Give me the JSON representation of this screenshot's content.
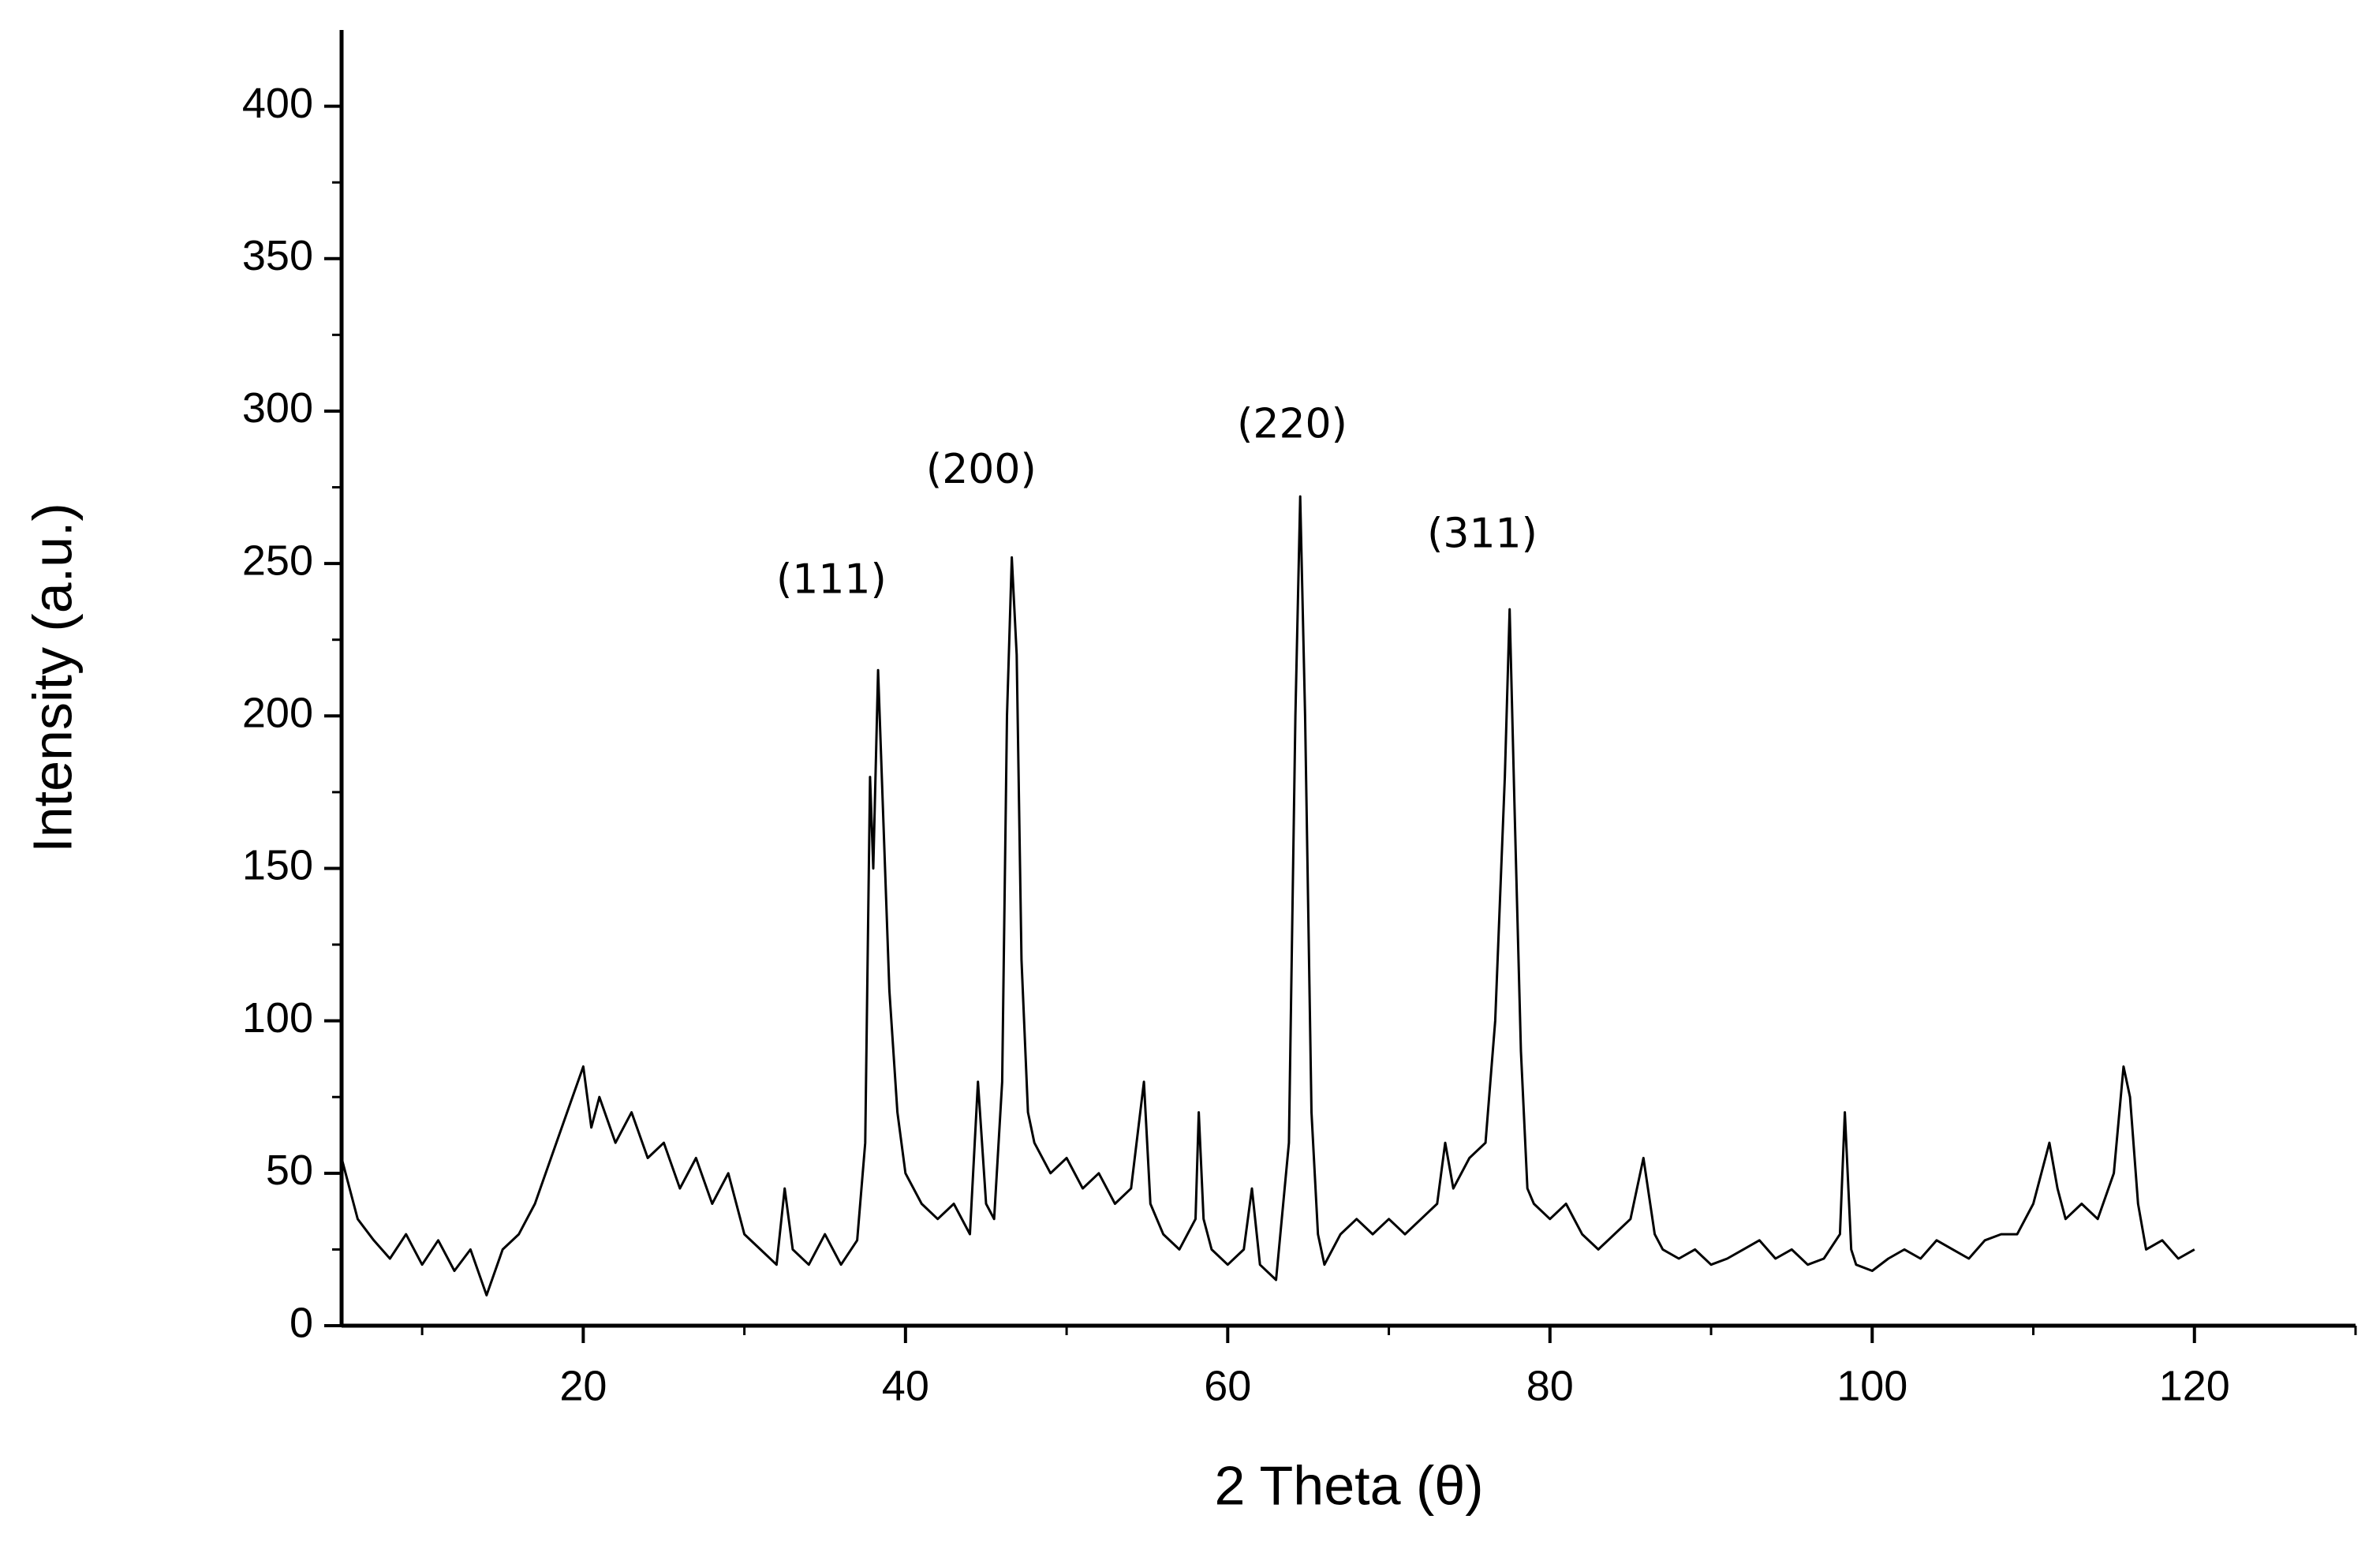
{
  "chart_data": {
    "type": "line",
    "x_label": "2 Theta (θ)",
    "y_label": "Intensity (a.u.)",
    "color": "#000000",
    "xlim": [
      5,
      130
    ],
    "ylim": [
      0,
      425
    ],
    "xticks": [
      20,
      40,
      60,
      80,
      100,
      120
    ],
    "xminorticks": [
      10,
      30,
      50,
      70,
      90,
      110,
      130
    ],
    "yticks": [
      0,
      50,
      100,
      150,
      200,
      250,
      300,
      350,
      400
    ],
    "yminorticks": [
      25,
      75,
      125,
      175,
      225,
      275,
      325,
      375
    ],
    "annotations": [
      {
        "text": "(111)",
        "x": 35.4,
        "y": 244
      },
      {
        "text": "(200)",
        "x": 44.7,
        "y": 280
      },
      {
        "text": "(220)",
        "x": 64,
        "y": 295
      },
      {
        "text": "(311)",
        "x": 75.8,
        "y": 259
      }
    ],
    "x": [
      5,
      6,
      7,
      8,
      9,
      10,
      11,
      12,
      13,
      14,
      15,
      16,
      17,
      18,
      19,
      20,
      20.5,
      21,
      22,
      23,
      24,
      25,
      26,
      27,
      28,
      29,
      30,
      31,
      32,
      32.5,
      33,
      34,
      35,
      36,
      37,
      37.5,
      37.8,
      38,
      38.3,
      38.6,
      39,
      39.5,
      40,
      41,
      42,
      43,
      44,
      44.5,
      45,
      45.5,
      46,
      46.3,
      46.6,
      46.9,
      47.2,
      47.6,
      48,
      49,
      50,
      51,
      52,
      53,
      54,
      54.8,
      55.2,
      56,
      57,
      58,
      58.2,
      58.5,
      59,
      60,
      61,
      61.5,
      62,
      63,
      63.8,
      64.2,
      64.5,
      64.8,
      65.2,
      65.6,
      66,
      67,
      68,
      69,
      70,
      71,
      72,
      73,
      73.5,
      74,
      75,
      76,
      76.6,
      77.2,
      77.5,
      77.8,
      78.2,
      78.6,
      79,
      80,
      81,
      82,
      83,
      84,
      85,
      85.8,
      86.5,
      87,
      88,
      89,
      90,
      91,
      92,
      93,
      94,
      95,
      96,
      97,
      98,
      98.3,
      98.7,
      99,
      100,
      101,
      102,
      103,
      104,
      105,
      106,
      107,
      108,
      109,
      110,
      111,
      111.5,
      112,
      113,
      114,
      115,
      115.6,
      116,
      116.5,
      117,
      118,
      119,
      120
    ],
    "values": [
      55,
      35,
      28,
      22,
      30,
      20,
      28,
      18,
      25,
      10,
      25,
      30,
      40,
      55,
      70,
      85,
      65,
      75,
      60,
      70,
      55,
      60,
      45,
      55,
      40,
      50,
      30,
      25,
      20,
      45,
      25,
      20,
      30,
      20,
      28,
      60,
      180,
      150,
      215,
      170,
      110,
      70,
      50,
      40,
      35,
      40,
      30,
      80,
      40,
      35,
      80,
      200,
      252,
      220,
      120,
      70,
      60,
      50,
      55,
      45,
      50,
      40,
      45,
      80,
      40,
      30,
      25,
      35,
      70,
      35,
      25,
      20,
      25,
      45,
      20,
      15,
      60,
      200,
      272,
      200,
      70,
      30,
      20,
      30,
      35,
      30,
      35,
      30,
      35,
      40,
      60,
      45,
      55,
      60,
      100,
      180,
      235,
      170,
      90,
      45,
      40,
      35,
      40,
      30,
      25,
      30,
      35,
      55,
      30,
      25,
      22,
      25,
      20,
      22,
      25,
      28,
      22,
      25,
      20,
      22,
      30,
      70,
      25,
      20,
      18,
      22,
      25,
      22,
      28,
      25,
      22,
      28,
      30,
      30,
      40,
      60,
      45,
      35,
      40,
      35,
      50,
      85,
      75,
      40,
      25,
      28,
      22,
      25
    ]
  }
}
